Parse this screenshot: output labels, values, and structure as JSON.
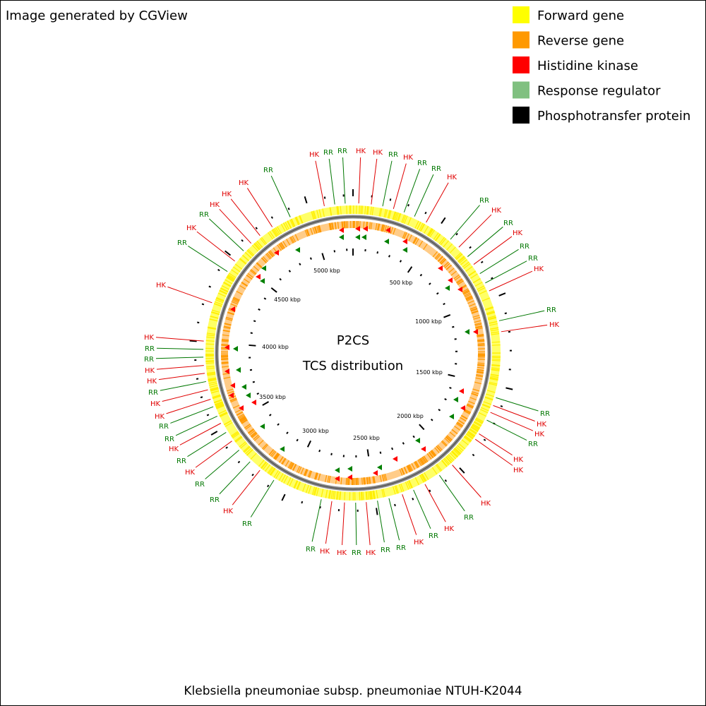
{
  "header": {
    "title": "Image generated by CGView"
  },
  "legend": [
    {
      "label": "Forward gene",
      "color": "#ffff00"
    },
    {
      "label": "Reverse gene",
      "color": "#ff9900"
    },
    {
      "label": "Histidine kinase",
      "color": "#ff0000"
    },
    {
      "label": "Response regulator",
      "color": "#80c080"
    },
    {
      "label": "Phosphotransfer protein",
      "color": "#000000"
    }
  ],
  "center": {
    "title": "P2CS",
    "subtitle": "TCS distribution"
  },
  "scale_labels": [
    "5000 kbp",
    "500 kbp",
    "1000 kbp",
    "1500 kbp",
    "2000 kbp",
    "2500 kbp",
    "3000 kbp",
    "3500 kbp",
    "4000 kbp",
    "4500 kbp"
  ],
  "feature_labels": [
    {
      "text": "HK",
      "color": "#e00000"
    },
    {
      "text": "RR",
      "color": "#007700"
    },
    {
      "text": "RR",
      "color": "#007700"
    },
    {
      "text": "HK",
      "color": "#e00000"
    },
    {
      "text": "HK",
      "color": "#e00000"
    },
    {
      "text": "RR",
      "color": "#007700"
    },
    {
      "text": "HK",
      "color": "#e00000"
    },
    {
      "text": "RR",
      "color": "#007700"
    },
    {
      "text": "RR",
      "color": "#007700"
    },
    {
      "text": "HK",
      "color": "#e00000"
    },
    {
      "text": "RR",
      "color": "#007700"
    },
    {
      "text": "HK",
      "color": "#e00000"
    },
    {
      "text": "RR",
      "color": "#007700"
    },
    {
      "text": "HK",
      "color": "#e00000"
    },
    {
      "text": "RR",
      "color": "#007700"
    },
    {
      "text": "RR",
      "color": "#007700"
    },
    {
      "text": "HK",
      "color": "#e00000"
    },
    {
      "text": "RR",
      "color": "#007700"
    },
    {
      "text": "HK",
      "color": "#e00000"
    },
    {
      "text": "RR",
      "color": "#007700"
    },
    {
      "text": "HK",
      "color": "#e00000"
    },
    {
      "text": "HK",
      "color": "#e00000"
    },
    {
      "text": "RR",
      "color": "#007700"
    },
    {
      "text": "HK",
      "color": "#e00000"
    },
    {
      "text": "HK",
      "color": "#e00000"
    },
    {
      "text": "HK",
      "color": "#e00000"
    },
    {
      "text": "RR",
      "color": "#007700"
    },
    {
      "text": "HK",
      "color": "#e00000"
    },
    {
      "text": "RR",
      "color": "#007700"
    },
    {
      "text": "HK",
      "color": "#e00000"
    },
    {
      "text": "RR",
      "color": "#007700"
    },
    {
      "text": "RR",
      "color": "#007700"
    },
    {
      "text": "HK",
      "color": "#e00000"
    },
    {
      "text": "RR",
      "color": "#007700"
    },
    {
      "text": "HK",
      "color": "#e00000"
    },
    {
      "text": "HK",
      "color": "#e00000"
    },
    {
      "text": "RR",
      "color": "#007700"
    },
    {
      "text": "RR",
      "color": "#007700"
    },
    {
      "text": "HK",
      "color": "#e00000"
    },
    {
      "text": "RR",
      "color": "#007700"
    },
    {
      "text": "RR",
      "color": "#007700"
    },
    {
      "text": "HK",
      "color": "#e00000"
    },
    {
      "text": "RR",
      "color": "#007700"
    },
    {
      "text": "HK",
      "color": "#e00000"
    },
    {
      "text": "RR",
      "color": "#007700"
    },
    {
      "text": "RR",
      "color": "#007700"
    },
    {
      "text": "HK",
      "color": "#e00000"
    },
    {
      "text": "HK",
      "color": "#e00000"
    },
    {
      "text": "RR",
      "color": "#007700"
    },
    {
      "text": "HK",
      "color": "#e00000"
    },
    {
      "text": "HK",
      "color": "#e00000"
    },
    {
      "text": "RR",
      "color": "#007700"
    },
    {
      "text": "RR",
      "color": "#007700"
    },
    {
      "text": "HK",
      "color": "#e00000"
    },
    {
      "text": "HK",
      "color": "#e00000"
    },
    {
      "text": "RR",
      "color": "#007700"
    },
    {
      "text": "HK",
      "color": "#e00000"
    },
    {
      "text": "RR",
      "color": "#007700"
    },
    {
      "text": "HK",
      "color": "#e00000"
    },
    {
      "text": "HK",
      "color": "#e00000"
    },
    {
      "text": "HK",
      "color": "#e00000"
    },
    {
      "text": "RR",
      "color": "#007700"
    }
  ],
  "footer": "Klebsiella pneumoniae subsp. pneumoniae NTUH-K2044"
}
